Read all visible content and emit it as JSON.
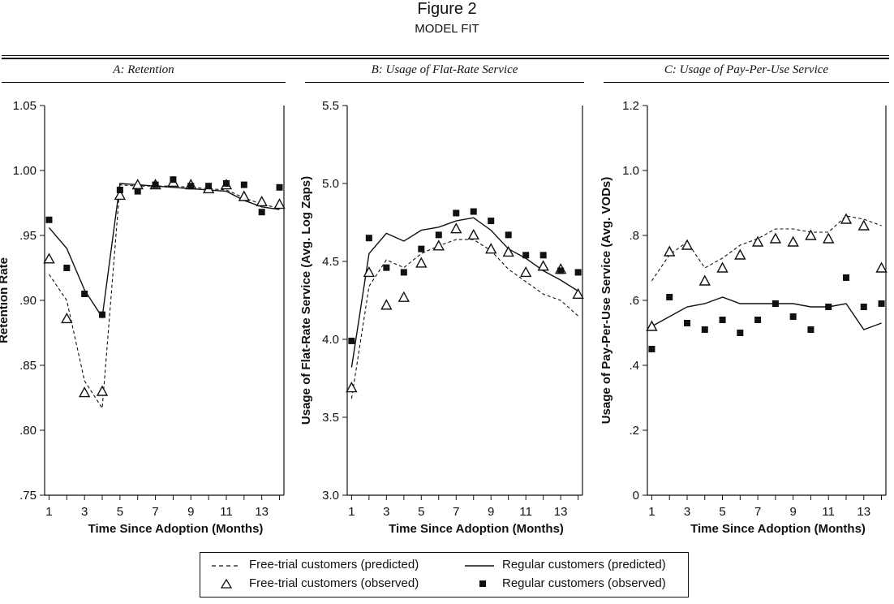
{
  "figure": {
    "title": "Figure 2",
    "subtitle": "MODEL FIT"
  },
  "chart_data": [
    {
      "type": "line",
      "title": "A: Retention",
      "xlabel": "Time Since Adoption (Months)",
      "ylabel": "Retention Rate",
      "xlim": [
        0.75,
        14.25
      ],
      "ylim": [
        0.75,
        1.05
      ],
      "xticks": [
        1,
        3,
        5,
        7,
        9,
        11,
        13
      ],
      "yticks": [
        {
          "v": 0.75,
          "label": ".75"
        },
        {
          "v": 0.8,
          "label": ".80"
        },
        {
          "v": 0.85,
          "label": ".85"
        },
        {
          "v": 0.9,
          "label": ".90"
        },
        {
          "v": 0.95,
          "label": ".95"
        },
        {
          "v": 1.0,
          "label": "1.00"
        },
        {
          "v": 1.05,
          "label": "1.05"
        }
      ],
      "x": [
        1,
        2,
        3,
        4,
        5,
        6,
        7,
        8,
        9,
        10,
        11,
        12,
        13,
        14
      ],
      "series": [
        {
          "name": "Free-trial customers (predicted)",
          "style": "dashed-line",
          "values": [
            0.92,
            0.9,
            0.838,
            0.817,
            0.989,
            0.988,
            0.988,
            0.988,
            0.987,
            0.986,
            0.985,
            0.979,
            0.974,
            0.971
          ]
        },
        {
          "name": "Regular customers (predicted)",
          "style": "solid-line",
          "values": [
            0.956,
            0.94,
            0.908,
            0.887,
            0.99,
            0.989,
            0.988,
            0.987,
            0.986,
            0.985,
            0.984,
            0.977,
            0.972,
            0.97
          ]
        },
        {
          "name": "Free-trial customers (observed)",
          "style": "triangle",
          "values": [
            0.932,
            0.886,
            0.829,
            0.83,
            0.981,
            0.989,
            0.989,
            0.991,
            0.989,
            0.986,
            0.989,
            0.98,
            0.976,
            0.974
          ]
        },
        {
          "name": "Regular customers (observed)",
          "style": "square",
          "values": [
            0.962,
            0.925,
            0.905,
            0.889,
            0.985,
            0.984,
            0.989,
            0.993,
            0.988,
            0.988,
            0.99,
            0.989,
            0.968,
            0.987
          ]
        }
      ]
    },
    {
      "type": "line",
      "title": "B: Usage of Flat-Rate Service",
      "xlabel": "Time Since Adoption (Months)",
      "ylabel": "Usage of Flat-Rate Service (Avg. Log Zaps)",
      "xlim": [
        0.75,
        14.25
      ],
      "ylim": [
        3.0,
        5.5
      ],
      "xticks": [
        1,
        3,
        5,
        7,
        9,
        11,
        13
      ],
      "yticks": [
        {
          "v": 3.0,
          "label": "3.0"
        },
        {
          "v": 3.5,
          "label": "3.5"
        },
        {
          "v": 4.0,
          "label": "4.0"
        },
        {
          "v": 4.5,
          "label": "4.5"
        },
        {
          "v": 5.0,
          "label": "5.0"
        },
        {
          "v": 5.5,
          "label": "5.5"
        }
      ],
      "x": [
        1,
        2,
        3,
        4,
        5,
        6,
        7,
        8,
        9,
        10,
        11,
        12,
        13,
        14
      ],
      "series": [
        {
          "name": "Free-trial customers (predicted)",
          "style": "dashed-line",
          "values": [
            3.62,
            4.34,
            4.51,
            4.46,
            4.55,
            4.6,
            4.64,
            4.64,
            4.57,
            4.45,
            4.37,
            4.29,
            4.25,
            4.15
          ]
        },
        {
          "name": "Regular customers (predicted)",
          "style": "solid-line",
          "values": [
            3.82,
            4.55,
            4.68,
            4.63,
            4.7,
            4.72,
            4.76,
            4.78,
            4.7,
            4.58,
            4.52,
            4.44,
            4.38,
            4.31
          ]
        },
        {
          "name": "Free-trial customers (observed)",
          "style": "triangle",
          "values": [
            3.69,
            4.43,
            4.22,
            4.27,
            4.49,
            4.6,
            4.71,
            4.67,
            4.58,
            4.56,
            4.43,
            4.47,
            4.45,
            4.29
          ]
        },
        {
          "name": "Regular customers (observed)",
          "style": "square",
          "values": [
            3.99,
            4.65,
            4.46,
            4.43,
            4.58,
            4.67,
            4.81,
            4.82,
            4.76,
            4.67,
            4.54,
            4.54,
            4.44,
            4.43
          ]
        }
      ]
    },
    {
      "type": "line",
      "title": "C: Usage of Pay-Per-Use Service",
      "xlabel": "Time Since Adoption (Months)",
      "ylabel": "Usage of Pay-Per-Use Service (Avg. VODs)",
      "xlim": [
        0.75,
        14.25
      ],
      "ylim": [
        0,
        1.2
      ],
      "xticks": [
        1,
        3,
        5,
        7,
        9,
        11,
        13
      ],
      "yticks": [
        {
          "v": 0,
          "label": "0"
        },
        {
          "v": 0.2,
          "label": ".2"
        },
        {
          "v": 0.4,
          "label": ".4"
        },
        {
          "v": 0.6,
          "label": ".6"
        },
        {
          "v": 0.8,
          "label": ".8"
        },
        {
          "v": 1.0,
          "label": "1.0"
        },
        {
          "v": 1.2,
          "label": "1.2"
        }
      ],
      "x": [
        1,
        2,
        3,
        4,
        5,
        6,
        7,
        8,
        9,
        10,
        11,
        12,
        13,
        14
      ],
      "series": [
        {
          "name": "Free-trial customers (predicted)",
          "style": "dashed-line",
          "values": [
            0.66,
            0.74,
            0.78,
            0.7,
            0.73,
            0.77,
            0.79,
            0.82,
            0.82,
            0.81,
            0.81,
            0.86,
            0.85,
            0.83
          ]
        },
        {
          "name": "Regular customers (predicted)",
          "style": "solid-line",
          "values": [
            0.52,
            0.55,
            0.58,
            0.59,
            0.61,
            0.59,
            0.59,
            0.59,
            0.59,
            0.58,
            0.58,
            0.59,
            0.51,
            0.53
          ]
        },
        {
          "name": "Free-trial customers (observed)",
          "style": "triangle",
          "values": [
            0.52,
            0.75,
            0.77,
            0.66,
            0.7,
            0.74,
            0.78,
            0.79,
            0.78,
            0.8,
            0.79,
            0.85,
            0.83,
            0.7
          ]
        },
        {
          "name": "Regular customers (observed)",
          "style": "square",
          "values": [
            0.45,
            0.61,
            0.53,
            0.51,
            0.54,
            0.5,
            0.54,
            0.59,
            0.55,
            0.51,
            0.58,
            0.67,
            0.58,
            0.59
          ]
        }
      ]
    }
  ],
  "legend": {
    "items": [
      {
        "label": "Free-trial customers (predicted)",
        "symbol": "dashed-line"
      },
      {
        "label": "Regular customers (predicted)",
        "symbol": "solid-line"
      },
      {
        "label": "Free-trial customers (observed)",
        "symbol": "triangle"
      },
      {
        "label": "Regular customers (observed)",
        "symbol": "square"
      }
    ]
  }
}
